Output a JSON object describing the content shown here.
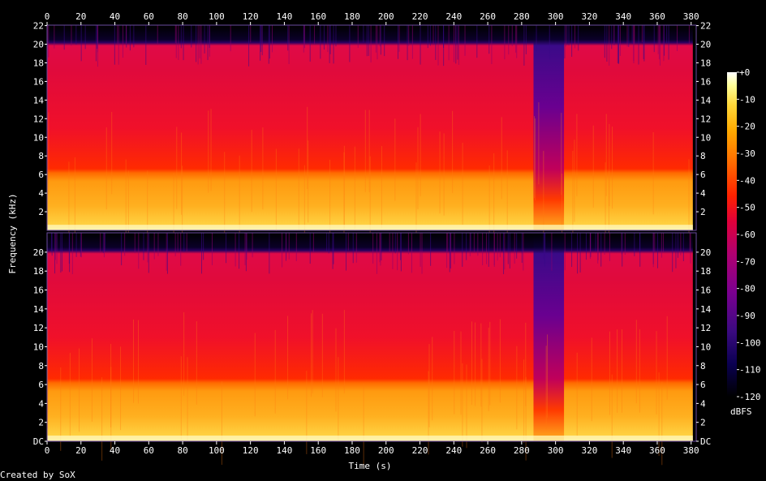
{
  "chart_data": {
    "type": "heatmap",
    "xlabel": "Time (s)",
    "ylabel": "Frequency (kHz)",
    "x_ticks": [
      0,
      20,
      40,
      60,
      80,
      100,
      120,
      140,
      160,
      180,
      200,
      220,
      240,
      260,
      280,
      300,
      320,
      340,
      360,
      380
    ],
    "xlim": [
      0,
      383
    ],
    "ylim": [
      0,
      22.05
    ],
    "y_ticks_top": [
      "2",
      "4",
      "6",
      "8",
      "10",
      "12",
      "14",
      "16",
      "18",
      "20",
      "22"
    ],
    "y_ticks_bottom": [
      "DC",
      "2",
      "4",
      "6",
      "8",
      "10",
      "12",
      "14",
      "16",
      "18",
      "20"
    ],
    "channels": [
      "top",
      "bottom"
    ],
    "colorbar": {
      "unit": "dBFS",
      "range": [
        -120,
        0
      ],
      "ticks": [
        "+0",
        "-10",
        "-20",
        "-30",
        "-40",
        "-50",
        "-60",
        "-70",
        "-80",
        "-90",
        "-100",
        "-110",
        "-120"
      ]
    },
    "cutoff_khz": 20.2,
    "song_end_s": 381,
    "quiet_gap_s": [
      287,
      305
    ],
    "palette": [
      "#000000",
      "#0a0050",
      "#3a0a80",
      "#7a0090",
      "#b00070",
      "#e0003a",
      "#ff2200",
      "#ff6a00",
      "#ffaa00",
      "#ffd83a",
      "#ffff9a",
      "#ffffff"
    ]
  },
  "credit": "Created by SoX"
}
